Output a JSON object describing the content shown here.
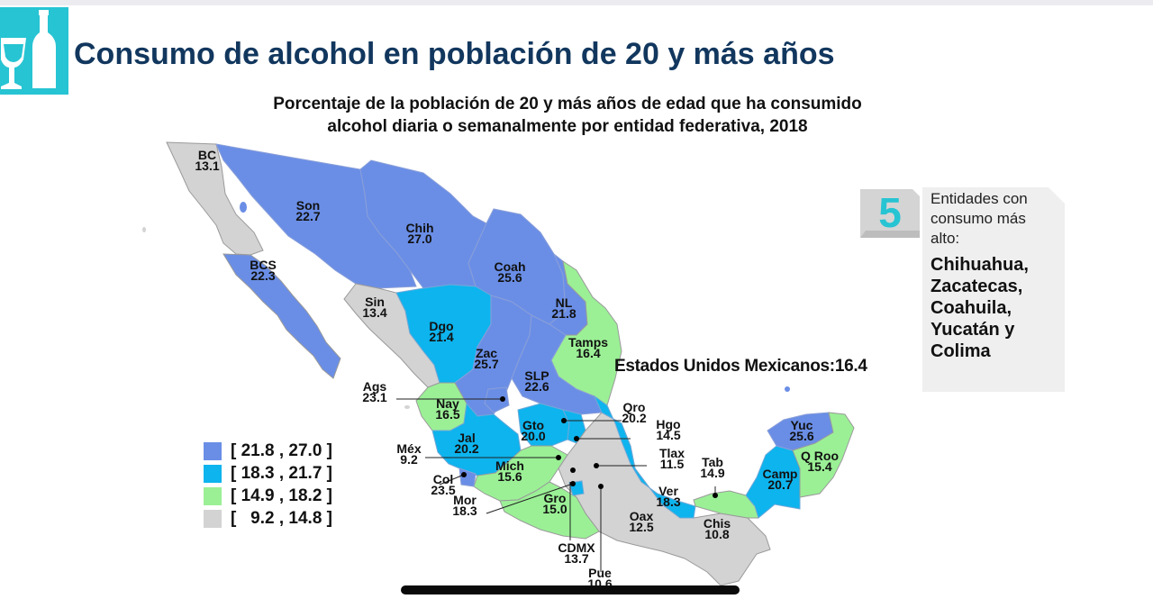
{
  "header": {
    "title": "Consumo de alcohol en población de 20 y más años",
    "logo_icon": "wine-glass-bottle-icon",
    "logo_color": "#27c4d3"
  },
  "subtitle_lines": [
    "Porcentaje de la población de 20 y más años de edad que ha consumido",
    "alcohol diaria o semanalmente por entidad federativa, 2018"
  ],
  "chart_data": {
    "type": "choropleth-map",
    "title": "Porcentaje de la población de 20 y más años de edad que ha consumido alcohol diaria o semanalmente por entidad federativa, 2018",
    "unit": "%",
    "national": {
      "label": "Estados Unidos Mexicanos:16.4",
      "value": 16.4
    },
    "legend": [
      {
        "label": "[ 21.8 , 27.0 ]",
        "min": 21.8,
        "max": 27.0,
        "color": "#6a8ee6"
      },
      {
        "label": "[ 18.3 , 21.7 ]",
        "min": 18.3,
        "max": 21.7,
        "color": "#0db4ee"
      },
      {
        "label": "[ 14.9 , 18.2 ]",
        "min": 14.9,
        "max": 18.2,
        "color": "#9bf096"
      },
      {
        "label": "[   9.2 , 14.8 ]",
        "min": 9.2,
        "max": 14.8,
        "color": "#d3d3d3"
      }
    ],
    "states": [
      {
        "abbr": "BC",
        "value": "13.1"
      },
      {
        "abbr": "Son",
        "value": "22.7"
      },
      {
        "abbr": "Chih",
        "value": "27.0"
      },
      {
        "abbr": "Coah",
        "value": "25.6"
      },
      {
        "abbr": "BCS",
        "value": "22.3"
      },
      {
        "abbr": "Sin",
        "value": "13.4"
      },
      {
        "abbr": "NL",
        "value": "21.8"
      },
      {
        "abbr": "Dgo",
        "value": "21.4"
      },
      {
        "abbr": "Tamps",
        "value": "16.4"
      },
      {
        "abbr": "Zac",
        "value": "25.7"
      },
      {
        "abbr": "SLP",
        "value": "22.6"
      },
      {
        "abbr": "Ags",
        "value": "23.1"
      },
      {
        "abbr": "Nay",
        "value": "16.5"
      },
      {
        "abbr": "Qro",
        "value": "20.2"
      },
      {
        "abbr": "Gto",
        "value": "20.0"
      },
      {
        "abbr": "Hgo",
        "value": "14.5"
      },
      {
        "abbr": "Jal",
        "value": "20.2"
      },
      {
        "abbr": "Méx",
        "value": "9.2"
      },
      {
        "abbr": "Tlax",
        "value": "11.5"
      },
      {
        "abbr": "Mich",
        "value": "15.6"
      },
      {
        "abbr": "Col",
        "value": "23.5"
      },
      {
        "abbr": "Tab",
        "value": "14.9"
      },
      {
        "abbr": "Yuc",
        "value": "25.6"
      },
      {
        "abbr": "Q Roo",
        "value": "15.4"
      },
      {
        "abbr": "Camp",
        "value": "20.7"
      },
      {
        "abbr": "Ver",
        "value": "18.3"
      },
      {
        "abbr": "Mor",
        "value": "18.3"
      },
      {
        "abbr": "Gro",
        "value": "15.0"
      },
      {
        "abbr": "Oax",
        "value": "12.5"
      },
      {
        "abbr": "Chis",
        "value": "10.8"
      },
      {
        "abbr": "CDMX",
        "value": "13.7"
      },
      {
        "abbr": "Pue",
        "value": "10.6"
      }
    ]
  },
  "side_panel": {
    "number": "5",
    "intro_lines": [
      "Entidades con",
      "consumo más",
      "alto:"
    ],
    "states": [
      "Chihuahua,",
      "Zacatecas,",
      "Coahuila,",
      "Yucatán y",
      "Colima"
    ]
  }
}
